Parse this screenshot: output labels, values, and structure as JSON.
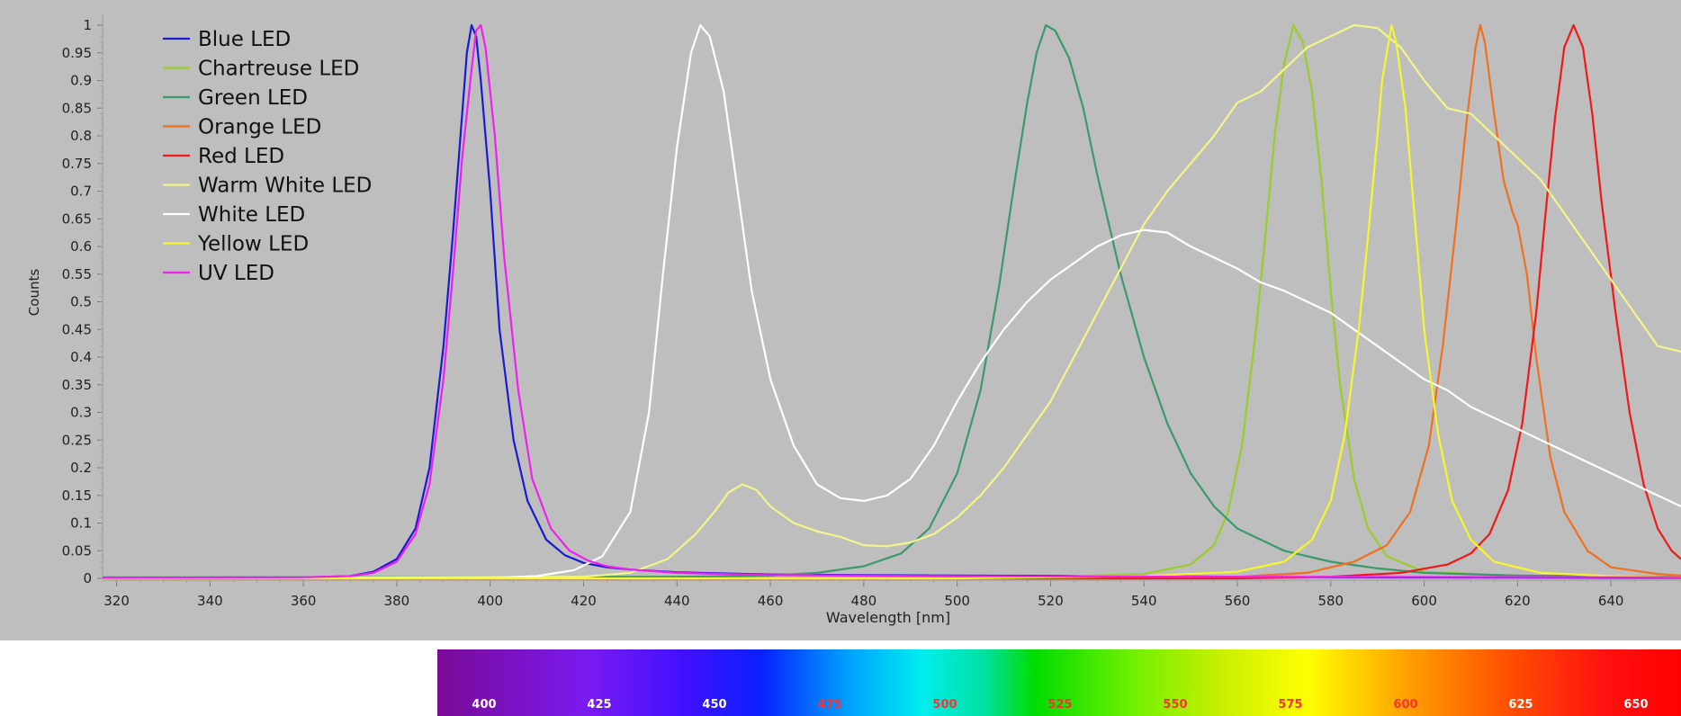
{
  "chart_data": {
    "type": "line",
    "title": "",
    "xlabel": "Wavelength [nm]",
    "ylabel": "Counts",
    "xlim": [
      317,
      655
    ],
    "ylim": [
      0,
      1
    ],
    "x_ticks": [
      320,
      340,
      360,
      380,
      400,
      420,
      440,
      460,
      480,
      500,
      520,
      540,
      560,
      580,
      600,
      620,
      640
    ],
    "y_ticks": [
      "0",
      "0.05",
      "0.1",
      "0.15",
      "0.2",
      "0.25",
      "0.3",
      "0.35",
      "0.4",
      "0.45",
      "0.5",
      "0.55",
      "0.6",
      "0.65",
      "0.7",
      "0.75",
      "0.8",
      "0.85",
      "0.9",
      "0.95",
      "1"
    ],
    "grid": false,
    "legend_position": "top-left",
    "series": [
      {
        "name": "Blue LED",
        "color": "#1a1ad2",
        "points": [
          [
            317,
            0.001
          ],
          [
            360,
            0.002
          ],
          [
            370,
            0.004
          ],
          [
            375,
            0.012
          ],
          [
            380,
            0.035
          ],
          [
            384,
            0.09
          ],
          [
            387,
            0.2
          ],
          [
            390,
            0.42
          ],
          [
            392,
            0.62
          ],
          [
            394,
            0.84
          ],
          [
            395,
            0.95
          ],
          [
            396,
            1.0
          ],
          [
            397,
            0.98
          ],
          [
            398,
            0.9
          ],
          [
            400,
            0.7
          ],
          [
            402,
            0.45
          ],
          [
            405,
            0.25
          ],
          [
            408,
            0.14
          ],
          [
            412,
            0.07
          ],
          [
            416,
            0.042
          ],
          [
            420,
            0.028
          ],
          [
            425,
            0.02
          ],
          [
            430,
            0.016
          ],
          [
            440,
            0.011
          ],
          [
            460,
            0.007
          ],
          [
            480,
            0.006
          ],
          [
            500,
            0.005
          ],
          [
            540,
            0.004
          ],
          [
            580,
            0.002
          ],
          [
            655,
            0.001
          ]
        ]
      },
      {
        "name": "Chartreuse LED",
        "color": "#9ccc2a",
        "points": [
          [
            317,
            0.0
          ],
          [
            480,
            0.0
          ],
          [
            520,
            0.003
          ],
          [
            540,
            0.008
          ],
          [
            550,
            0.025
          ],
          [
            555,
            0.06
          ],
          [
            558,
            0.12
          ],
          [
            561,
            0.24
          ],
          [
            564,
            0.45
          ],
          [
            566,
            0.62
          ],
          [
            568,
            0.8
          ],
          [
            570,
            0.93
          ],
          [
            572,
            1.0
          ],
          [
            574,
            0.97
          ],
          [
            576,
            0.88
          ],
          [
            578,
            0.72
          ],
          [
            580,
            0.52
          ],
          [
            582,
            0.35
          ],
          [
            585,
            0.18
          ],
          [
            588,
            0.09
          ],
          [
            592,
            0.04
          ],
          [
            600,
            0.012
          ],
          [
            620,
            0.004
          ],
          [
            655,
            0.002
          ]
        ]
      },
      {
        "name": "Green LED",
        "color": "#3a9a6a",
        "points": [
          [
            317,
            0.002
          ],
          [
            440,
            0.003
          ],
          [
            460,
            0.005
          ],
          [
            470,
            0.01
          ],
          [
            480,
            0.022
          ],
          [
            488,
            0.045
          ],
          [
            494,
            0.09
          ],
          [
            500,
            0.19
          ],
          [
            505,
            0.34
          ],
          [
            509,
            0.53
          ],
          [
            512,
            0.7
          ],
          [
            515,
            0.86
          ],
          [
            517,
            0.95
          ],
          [
            519,
            1.0
          ],
          [
            521,
            0.99
          ],
          [
            524,
            0.94
          ],
          [
            527,
            0.85
          ],
          [
            530,
            0.73
          ],
          [
            535,
            0.55
          ],
          [
            540,
            0.4
          ],
          [
            545,
            0.28
          ],
          [
            550,
            0.19
          ],
          [
            555,
            0.13
          ],
          [
            560,
            0.09
          ],
          [
            570,
            0.05
          ],
          [
            580,
            0.03
          ],
          [
            590,
            0.018
          ],
          [
            600,
            0.01
          ],
          [
            620,
            0.005
          ],
          [
            655,
            0.003
          ]
        ]
      },
      {
        "name": "Orange LED",
        "color": "#f07020",
        "points": [
          [
            317,
            0.0
          ],
          [
            540,
            0.0
          ],
          [
            560,
            0.003
          ],
          [
            575,
            0.01
          ],
          [
            585,
            0.03
          ],
          [
            592,
            0.06
          ],
          [
            597,
            0.12
          ],
          [
            601,
            0.24
          ],
          [
            604,
            0.42
          ],
          [
            607,
            0.65
          ],
          [
            609,
            0.82
          ],
          [
            611,
            0.96
          ],
          [
            612,
            1.0
          ],
          [
            613,
            0.97
          ],
          [
            615,
            0.84
          ],
          [
            617,
            0.72
          ],
          [
            619,
            0.66
          ],
          [
            620,
            0.64
          ],
          [
            622,
            0.55
          ],
          [
            624,
            0.4
          ],
          [
            627,
            0.22
          ],
          [
            630,
            0.12
          ],
          [
            635,
            0.05
          ],
          [
            640,
            0.02
          ],
          [
            650,
            0.008
          ],
          [
            655,
            0.005
          ]
        ]
      },
      {
        "name": "Red LED",
        "color": "#f21818",
        "points": [
          [
            317,
            0.0
          ],
          [
            560,
            0.0
          ],
          [
            580,
            0.003
          ],
          [
            595,
            0.01
          ],
          [
            605,
            0.025
          ],
          [
            610,
            0.045
          ],
          [
            614,
            0.08
          ],
          [
            618,
            0.16
          ],
          [
            621,
            0.28
          ],
          [
            624,
            0.48
          ],
          [
            626,
            0.66
          ],
          [
            628,
            0.83
          ],
          [
            630,
            0.96
          ],
          [
            632,
            1.0
          ],
          [
            634,
            0.96
          ],
          [
            636,
            0.84
          ],
          [
            638,
            0.68
          ],
          [
            641,
            0.48
          ],
          [
            644,
            0.3
          ],
          [
            647,
            0.17
          ],
          [
            650,
            0.09
          ],
          [
            653,
            0.05
          ],
          [
            655,
            0.035
          ]
        ]
      },
      {
        "name": "Warm White LED",
        "color": "#f4f48a",
        "points": [
          [
            317,
            0.0
          ],
          [
            420,
            0.003
          ],
          [
            430,
            0.01
          ],
          [
            438,
            0.035
          ],
          [
            444,
            0.08
          ],
          [
            448,
            0.12
          ],
          [
            451,
            0.155
          ],
          [
            454,
            0.17
          ],
          [
            457,
            0.16
          ],
          [
            460,
            0.13
          ],
          [
            465,
            0.1
          ],
          [
            470,
            0.085
          ],
          [
            475,
            0.075
          ],
          [
            480,
            0.06
          ],
          [
            485,
            0.058
          ],
          [
            490,
            0.065
          ],
          [
            495,
            0.08
          ],
          [
            500,
            0.11
          ],
          [
            505,
            0.15
          ],
          [
            510,
            0.2
          ],
          [
            515,
            0.26
          ],
          [
            520,
            0.32
          ],
          [
            525,
            0.4
          ],
          [
            530,
            0.48
          ],
          [
            535,
            0.56
          ],
          [
            540,
            0.64
          ],
          [
            545,
            0.7
          ],
          [
            550,
            0.75
          ],
          [
            555,
            0.8
          ],
          [
            560,
            0.86
          ],
          [
            565,
            0.88
          ],
          [
            570,
            0.92
          ],
          [
            575,
            0.96
          ],
          [
            580,
            0.98
          ],
          [
            585,
            1.0
          ],
          [
            590,
            0.995
          ],
          [
            595,
            0.96
          ],
          [
            600,
            0.9
          ],
          [
            605,
            0.85
          ],
          [
            610,
            0.84
          ],
          [
            615,
            0.8
          ],
          [
            620,
            0.76
          ],
          [
            625,
            0.72
          ],
          [
            630,
            0.66
          ],
          [
            635,
            0.6
          ],
          [
            640,
            0.54
          ],
          [
            645,
            0.48
          ],
          [
            650,
            0.42
          ],
          [
            655,
            0.41
          ]
        ]
      },
      {
        "name": "White LED",
        "color": "#ffffff",
        "points": [
          [
            317,
            0.0
          ],
          [
            400,
            0.001
          ],
          [
            410,
            0.004
          ],
          [
            418,
            0.015
          ],
          [
            424,
            0.04
          ],
          [
            430,
            0.12
          ],
          [
            434,
            0.3
          ],
          [
            437,
            0.55
          ],
          [
            440,
            0.78
          ],
          [
            443,
            0.95
          ],
          [
            445,
            1.0
          ],
          [
            447,
            0.98
          ],
          [
            450,
            0.88
          ],
          [
            453,
            0.7
          ],
          [
            456,
            0.52
          ],
          [
            460,
            0.36
          ],
          [
            465,
            0.24
          ],
          [
            470,
            0.17
          ],
          [
            475,
            0.145
          ],
          [
            480,
            0.14
          ],
          [
            485,
            0.15
          ],
          [
            490,
            0.18
          ],
          [
            495,
            0.24
          ],
          [
            500,
            0.32
          ],
          [
            505,
            0.39
          ],
          [
            510,
            0.45
          ],
          [
            515,
            0.5
          ],
          [
            520,
            0.54
          ],
          [
            525,
            0.57
          ],
          [
            530,
            0.6
          ],
          [
            535,
            0.62
          ],
          [
            540,
            0.63
          ],
          [
            545,
            0.625
          ],
          [
            550,
            0.6
          ],
          [
            555,
            0.58
          ],
          [
            560,
            0.56
          ],
          [
            565,
            0.535
          ],
          [
            570,
            0.52
          ],
          [
            575,
            0.5
          ],
          [
            580,
            0.48
          ],
          [
            585,
            0.45
          ],
          [
            590,
            0.42
          ],
          [
            595,
            0.39
          ],
          [
            600,
            0.36
          ],
          [
            605,
            0.34
          ],
          [
            610,
            0.31
          ],
          [
            615,
            0.29
          ],
          [
            620,
            0.27
          ],
          [
            625,
            0.25
          ],
          [
            630,
            0.23
          ],
          [
            635,
            0.21
          ],
          [
            640,
            0.19
          ],
          [
            645,
            0.17
          ],
          [
            650,
            0.15
          ],
          [
            655,
            0.13
          ]
        ]
      },
      {
        "name": "Yellow LED",
        "color": "#f6f62a",
        "points": [
          [
            317,
            0.0
          ],
          [
            500,
            0.0
          ],
          [
            540,
            0.004
          ],
          [
            560,
            0.012
          ],
          [
            570,
            0.03
          ],
          [
            576,
            0.07
          ],
          [
            580,
            0.14
          ],
          [
            583,
            0.26
          ],
          [
            586,
            0.45
          ],
          [
            588,
            0.62
          ],
          [
            590,
            0.8
          ],
          [
            591,
            0.9
          ],
          [
            593,
            1.0
          ],
          [
            594,
            0.97
          ],
          [
            596,
            0.85
          ],
          [
            598,
            0.65
          ],
          [
            600,
            0.45
          ],
          [
            603,
            0.26
          ],
          [
            606,
            0.14
          ],
          [
            610,
            0.07
          ],
          [
            615,
            0.03
          ],
          [
            625,
            0.01
          ],
          [
            640,
            0.004
          ],
          [
            655,
            0.002
          ]
        ]
      },
      {
        "name": "UV LED",
        "color": "#f020f0",
        "points": [
          [
            317,
            0.001
          ],
          [
            360,
            0.002
          ],
          [
            370,
            0.004
          ],
          [
            375,
            0.01
          ],
          [
            380,
            0.03
          ],
          [
            384,
            0.08
          ],
          [
            387,
            0.17
          ],
          [
            390,
            0.36
          ],
          [
            392,
            0.55
          ],
          [
            394,
            0.76
          ],
          [
            396,
            0.92
          ],
          [
            397,
            0.99
          ],
          [
            398,
            1.0
          ],
          [
            399,
            0.96
          ],
          [
            401,
            0.8
          ],
          [
            403,
            0.58
          ],
          [
            406,
            0.34
          ],
          [
            409,
            0.18
          ],
          [
            413,
            0.09
          ],
          [
            417,
            0.05
          ],
          [
            421,
            0.032
          ],
          [
            425,
            0.022
          ],
          [
            430,
            0.016
          ],
          [
            440,
            0.01
          ],
          [
            460,
            0.006
          ],
          [
            500,
            0.004
          ],
          [
            560,
            0.003
          ],
          [
            655,
            0.002
          ]
        ]
      }
    ]
  },
  "spectrum_bar": {
    "labels": [
      "400",
      "425",
      "450",
      "475",
      "500",
      "525",
      "550",
      "575",
      "600",
      "625",
      "650"
    ],
    "label_colors": [
      "#ffffff",
      "#ffffff",
      "#ffffff",
      "#ff3030",
      "#ff3030",
      "#ff3030",
      "#ff3030",
      "#ff3030",
      "#ff3030",
      "#ffffff",
      "#ffffff"
    ]
  }
}
